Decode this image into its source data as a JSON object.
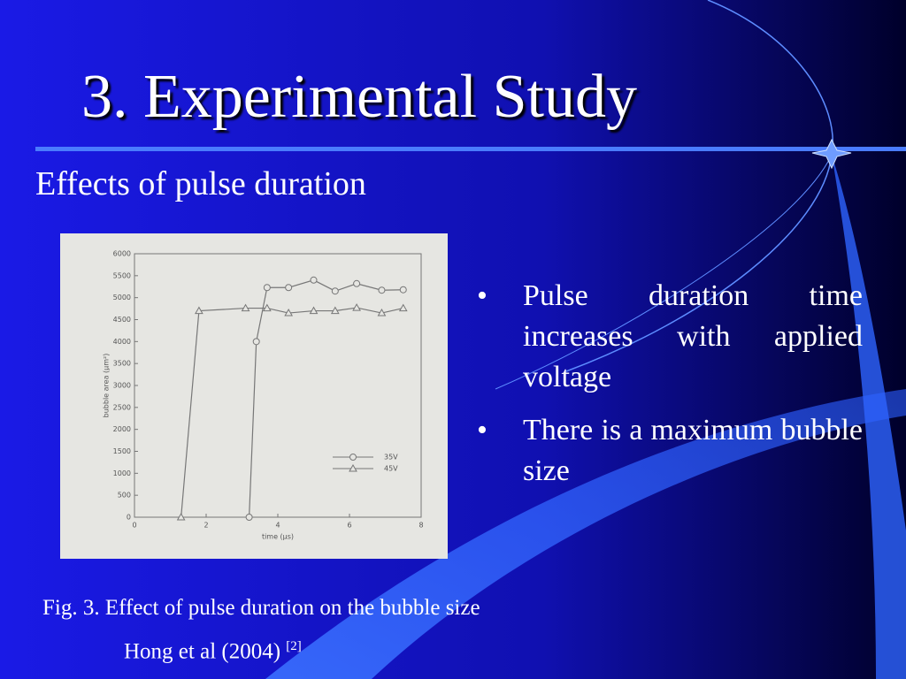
{
  "title": "3. Experimental Study",
  "subtitle": "Effects of pulse duration",
  "bullets": [
    "Pulse duration time increases with applied voltage",
    "There is a maximum bubble size"
  ],
  "chart_data": {
    "type": "line",
    "x_label": "time (μs)",
    "y_label": "bubble area (μm²)",
    "xlim": [
      0,
      8
    ],
    "xticks": [
      0,
      2,
      4,
      6,
      8
    ],
    "ylim": [
      0,
      6000
    ],
    "yticks": [
      0,
      500,
      1000,
      1500,
      2000,
      2500,
      3000,
      3500,
      4000,
      4500,
      5000,
      5500,
      6000
    ],
    "legend": "lower right",
    "series": [
      {
        "name": "35V",
        "color": "#777777",
        "marker": "circle",
        "x": [
          3.2,
          3.4,
          3.7,
          4.3,
          5.0,
          5.6,
          6.2,
          6.9,
          7.5
        ],
        "values": [
          0,
          4000,
          5230,
          5230,
          5400,
          5150,
          5320,
          5170,
          5180
        ]
      },
      {
        "name": "45V",
        "color": "#777777",
        "marker": "triangle",
        "x": [
          1.3,
          1.8,
          3.1,
          3.7,
          4.3,
          5.0,
          5.6,
          6.2,
          6.9,
          7.5
        ],
        "values": [
          0,
          4700,
          4760,
          4760,
          4650,
          4700,
          4700,
          4770,
          4650,
          4760
        ]
      }
    ]
  },
  "caption": "Fig. 3. Effect of pulse duration on the bubble size",
  "citation": "Hong et al (2004)",
  "citation_ref": "[2]"
}
